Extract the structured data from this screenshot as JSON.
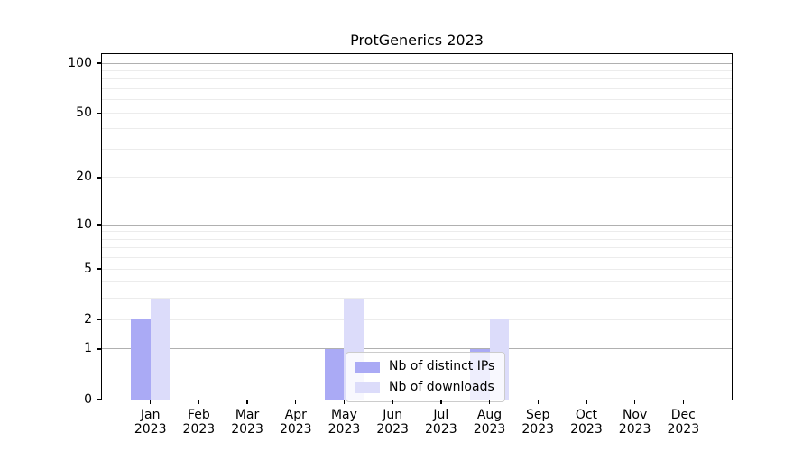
{
  "chart_data": {
    "type": "bar",
    "title": "ProtGenerics 2023",
    "scale": "log1p",
    "grid": "horizontal",
    "legend_position": "lower center",
    "categories": [
      "Jan",
      "Feb",
      "Mar",
      "Apr",
      "May",
      "Jun",
      "Jul",
      "Aug",
      "Sep",
      "Oct",
      "Nov",
      "Dec"
    ],
    "year_label": "2023",
    "series": [
      {
        "name": "Nb of distinct IPs",
        "color": "#aaaaf5",
        "values": [
          2,
          0,
          0,
          0,
          1,
          0,
          0,
          1,
          0,
          0,
          0,
          0
        ]
      },
      {
        "name": "Nb of downloads",
        "color": "#dcdcfa",
        "values": [
          3,
          0,
          0,
          0,
          3,
          0,
          0,
          2,
          0,
          0,
          0,
          0
        ]
      }
    ],
    "yticks": [
      0,
      1,
      2,
      5,
      10,
      20,
      50,
      100
    ],
    "ylim": [
      0,
      113
    ],
    "major_grid_values": [
      1,
      10,
      100
    ],
    "minor_grid_values": [
      2,
      3,
      4,
      5,
      6,
      7,
      8,
      9,
      20,
      30,
      40,
      50,
      60,
      70,
      80,
      90
    ]
  },
  "colors": {
    "bar_distinct_ips": "#aaaaf5",
    "bar_downloads": "#dcdcfa",
    "major_grid": "#b0b0b0",
    "minor_grid": "#ececec",
    "spine": "#000000",
    "legend_border": "#cccccc",
    "text": "#000000"
  }
}
